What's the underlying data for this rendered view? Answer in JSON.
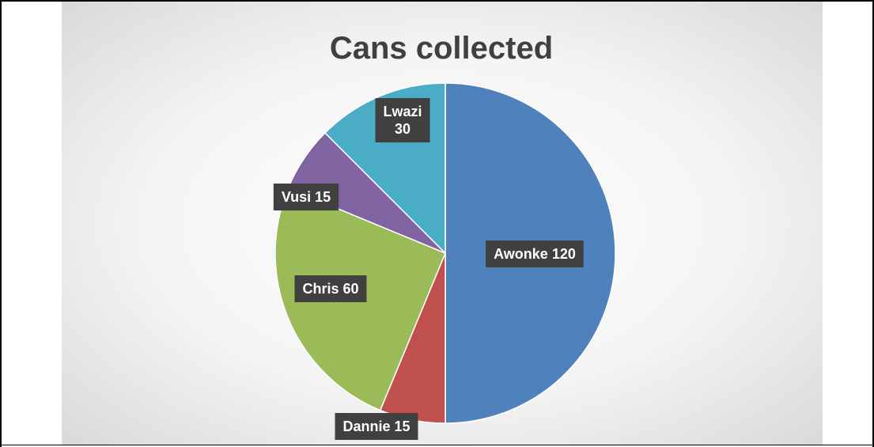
{
  "chart_data": {
    "type": "pie",
    "title": "Cans collected",
    "slices": [
      {
        "name": "Awonke",
        "value": 120,
        "label_lines": [
          "Awonke 120"
        ],
        "color": "#4F81BD"
      },
      {
        "name": "Dannie",
        "value": 15,
        "label_lines": [
          "Dannie 15"
        ],
        "color": "#C0504D"
      },
      {
        "name": "Chris",
        "value": 60,
        "label_lines": [
          "Chris 60"
        ],
        "color": "#9BBB59"
      },
      {
        "name": "Vusi",
        "value": 15,
        "label_lines": [
          "Vusi 15"
        ],
        "color": "#8064A2"
      },
      {
        "name": "Lwazi",
        "value": 30,
        "label_lines": [
          "Lwazi",
          "30"
        ],
        "color": "#4BACC6"
      }
    ],
    "start_angle_deg": 0,
    "direction": "clockwise",
    "legend": "none",
    "label_style": {
      "background": "#404040",
      "text_color": "#ffffff"
    }
  }
}
